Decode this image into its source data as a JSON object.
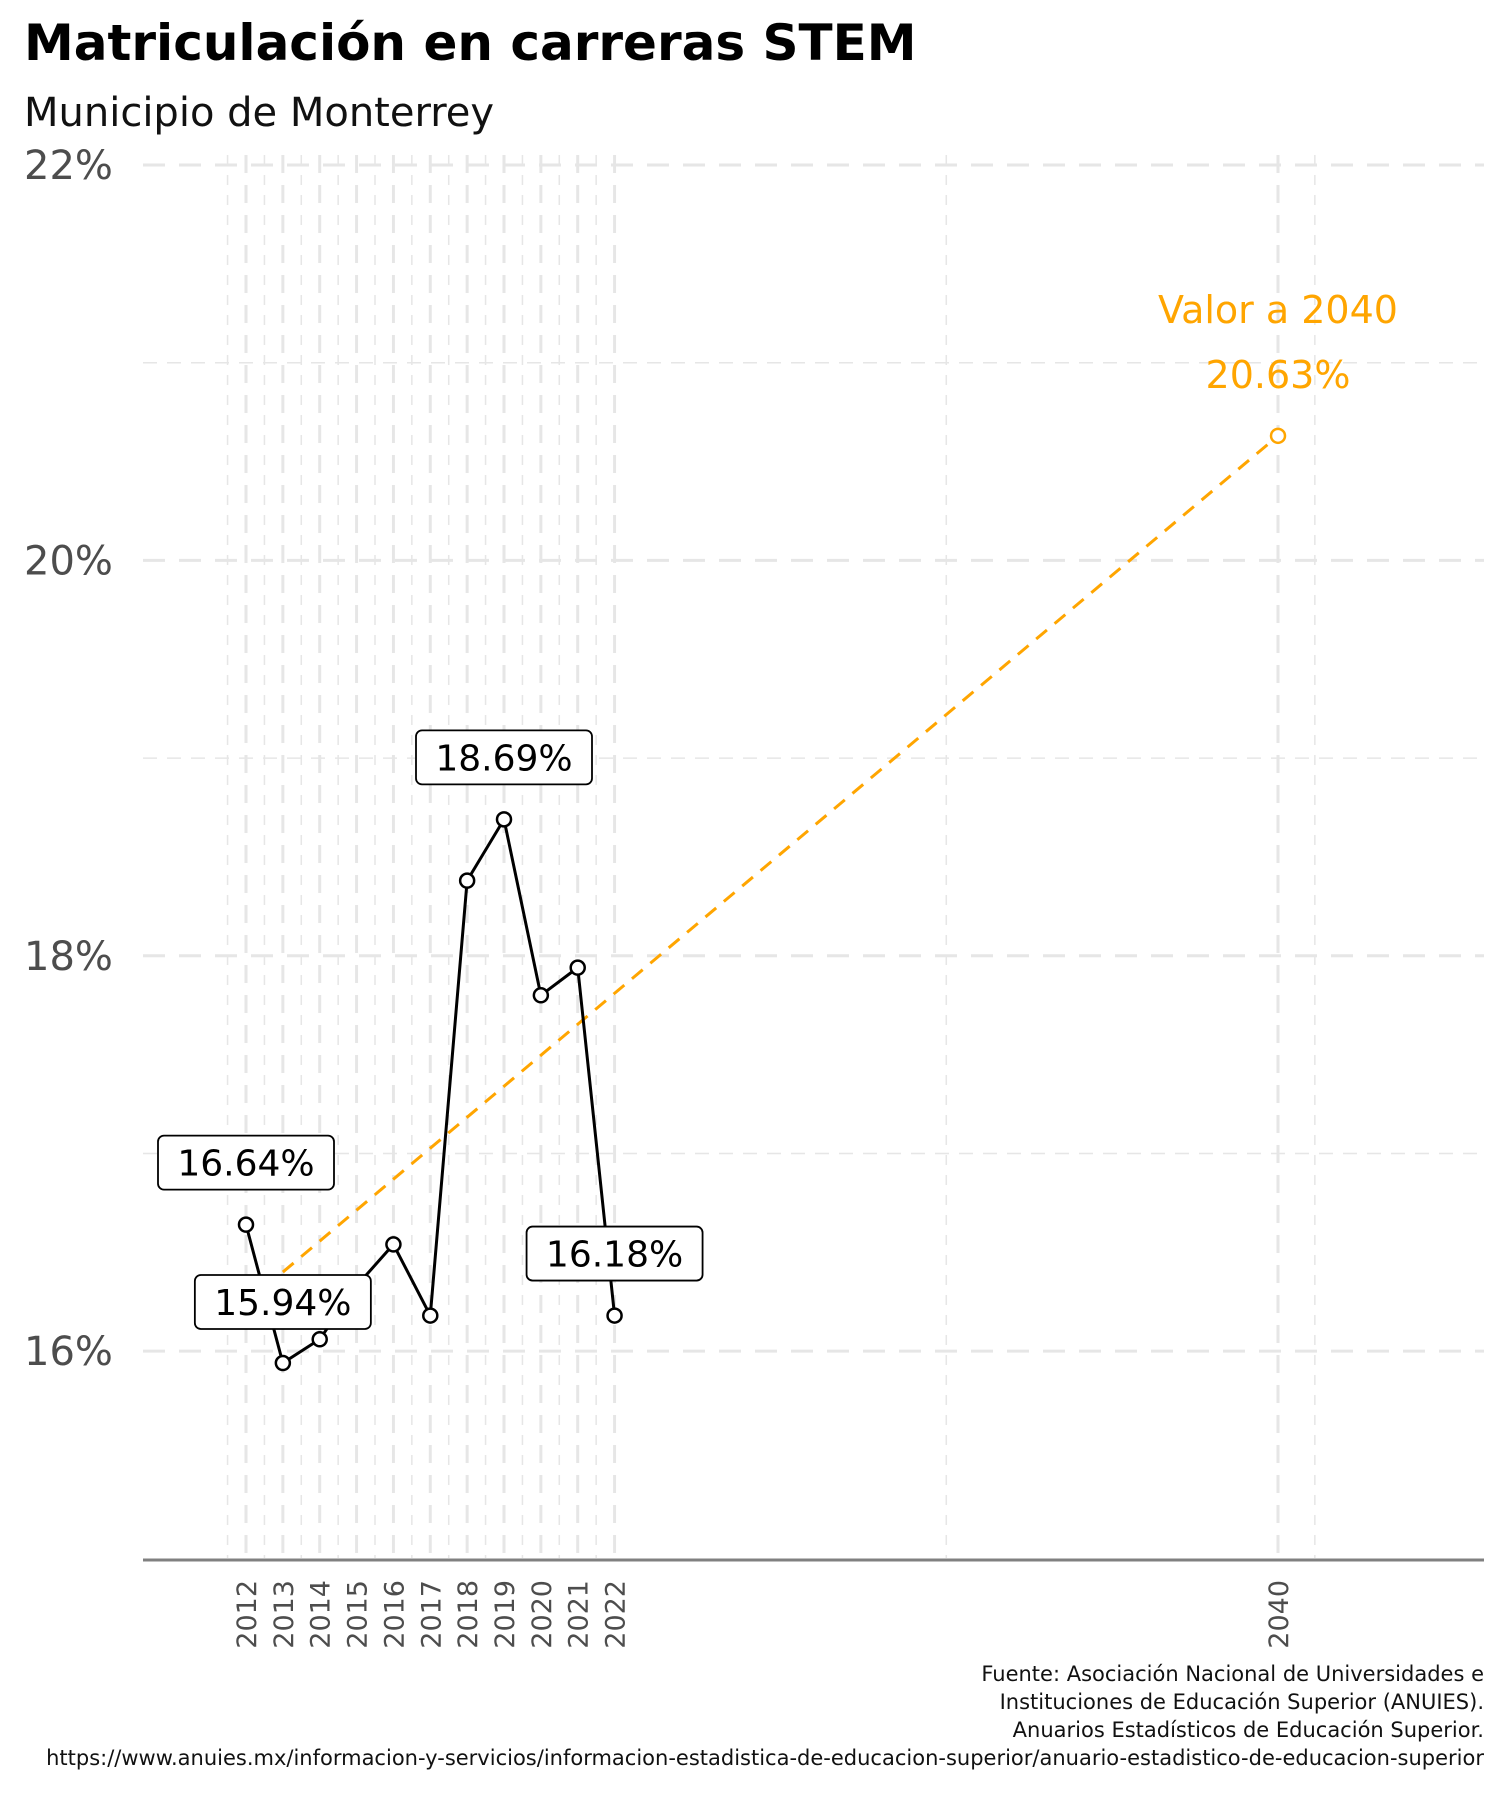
{
  "title": "Matriculación en carreras STEM",
  "subtitle": "Municipio de Monterrey",
  "caption": [
    "Fuente: Asociación Nacional de Universidades e",
    "Instituciones de Educación Superior (ANUIES).",
    "Anuarios Estadísticos de Educación Superior.",
    "https://www.anuies.mx/informacion-y-servicios/informacion-estadistica-de-educacion-superior/anuario-estadistico-de-educacion-superior"
  ],
  "colors": {
    "series": "#000000",
    "projection": "#FFA500",
    "grid": "#e6e6e6",
    "axis": "#808080",
    "tick_text": "#4d4d4d"
  },
  "chart_data": {
    "type": "line",
    "x": [
      2012,
      2013,
      2014,
      2015,
      2016,
      2017,
      2018,
      2019,
      2020,
      2021,
      2022
    ],
    "series": [
      {
        "values": [
          16.64,
          15.94,
          16.06,
          16.33,
          16.54,
          16.18,
          18.38,
          18.69,
          17.8,
          17.94,
          16.18
        ]
      }
    ],
    "projection": {
      "x": [
        2013,
        2040
      ],
      "y": [
        16.4,
        20.63
      ],
      "label_title": "Valor a 2040",
      "label_value": "20.63%"
    },
    "point_labels": [
      {
        "x": 2012,
        "text": "16.64%"
      },
      {
        "x": 2013,
        "text": "15.94%"
      },
      {
        "x": 2019,
        "text": "18.69%"
      },
      {
        "x": 2022,
        "text": "16.18%"
      }
    ],
    "xticks": [
      2012,
      2013,
      2014,
      2015,
      2016,
      2017,
      2018,
      2019,
      2020,
      2021,
      2022,
      2040
    ],
    "yticks": [
      16,
      18,
      20,
      22
    ],
    "ytick_labels": [
      "16%",
      "18%",
      "20%",
      "22%"
    ],
    "xlim": [
      2011,
      2046
    ],
    "ylim": [
      15.5,
      22
    ],
    "grid": true,
    "legend": "none"
  }
}
